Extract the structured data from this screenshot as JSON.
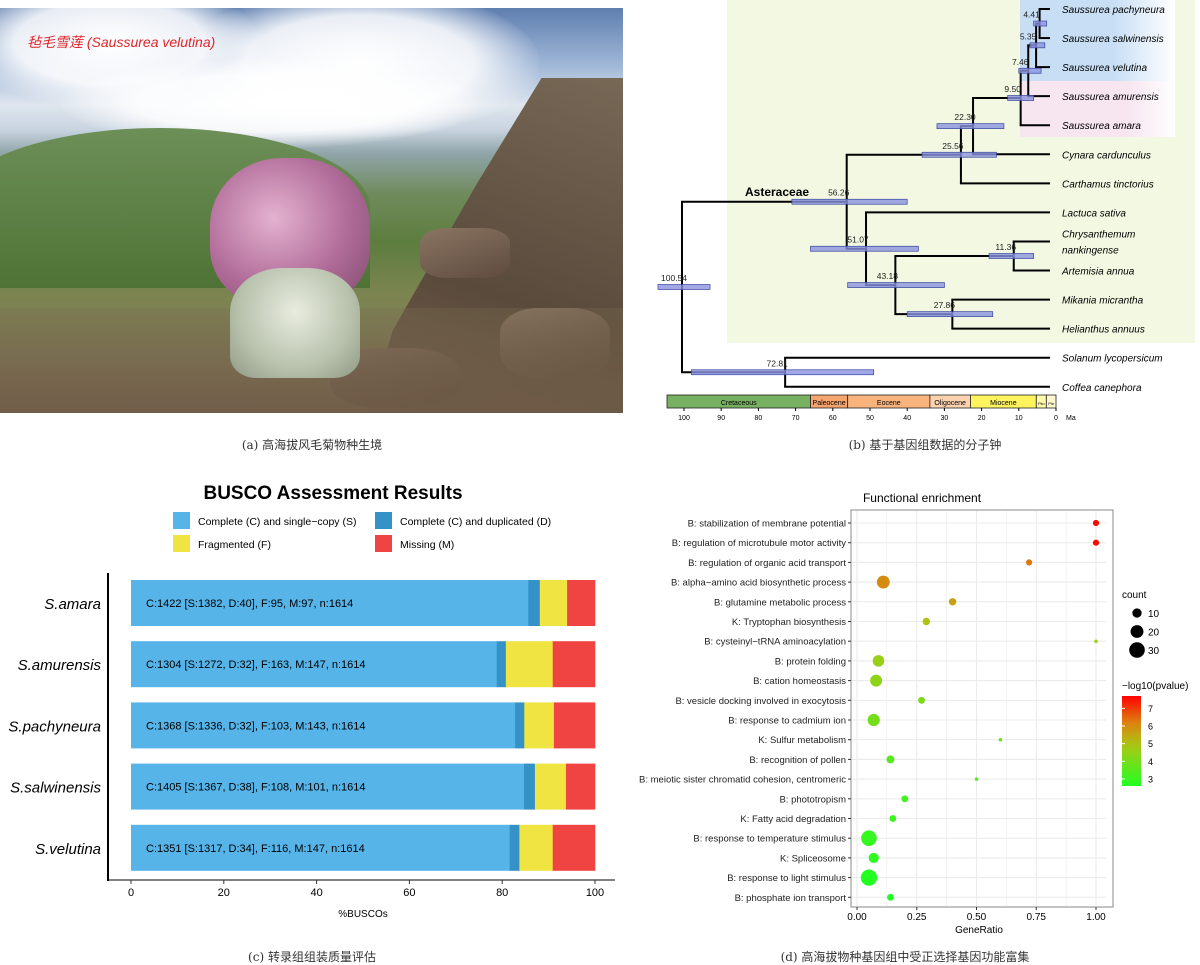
{
  "panel_a": {
    "photo_title": "毡毛雪莲 (Saussurea velutina)",
    "caption": "(a) 高海拔风毛菊物种生境"
  },
  "panel_b": {
    "caption": "(b) 基于基因组数据的分子钟",
    "clade_label": "Asteraceae",
    "axis_unit": "Ma",
    "axis_ticks": [
      100,
      90,
      80,
      70,
      60,
      50,
      40,
      30,
      20,
      10,
      0
    ],
    "highlight_colors": {
      "asteraceae": "#f3f8e2",
      "blue_group": "#c8def5",
      "pink_group": "#f7e6f0"
    },
    "epochs": [
      {
        "name": "Cretaceous",
        "from": 105,
        "to": 66,
        "color": "#78b062"
      },
      {
        "name": "Paleocene",
        "from": 66,
        "to": 56,
        "color": "#f7a56e"
      },
      {
        "name": "Eocene",
        "from": 56,
        "to": 33.9,
        "color": "#f9b47e"
      },
      {
        "name": "Oligocene",
        "from": 33.9,
        "to": 23,
        "color": "#fbd2ae"
      },
      {
        "name": "Miocene",
        "from": 23,
        "to": 5.3,
        "color": "#fff35e"
      },
      {
        "name": "Plio",
        "from": 5.3,
        "to": 2.6,
        "color": "#fff9a8"
      },
      {
        "name": "Ple",
        "from": 2.6,
        "to": 0,
        "color": "#fff6cc"
      }
    ],
    "tree": {
      "age": 100.54,
      "ci": [
        107,
        93
      ],
      "children": [
        {
          "age": 56.26,
          "ci": [
            71,
            40
          ],
          "children": [
            {
              "age": 25.56,
              "ci": [
                36,
                16
              ],
              "children": [
                {
                  "age": 22.3,
                  "ci": [
                    32,
                    14
                  ],
                  "children": [
                    {
                      "age": 9.5,
                      "ci": [
                        13,
                        6
                      ],
                      "children": [
                        {
                          "age": 7.46,
                          "ci": [
                            10,
                            4
                          ],
                          "children": [
                            {
                              "age": 5.35,
                              "ci": [
                                7,
                                3
                              ],
                              "children": [
                                {
                                  "age": 4.41,
                                  "ci": [
                                    6,
                                    2.5
                                  ],
                                  "children": [
                                    {
                                      "name": "Saussurea pachyneura"
                                    },
                                    {
                                      "name": "Saussurea salwinensis"
                                    }
                                  ]
                                },
                                {
                                  "name": "Saussurea velutina"
                                }
                              ]
                            },
                            {
                              "name": "Saussurea amurensis"
                            }
                          ]
                        },
                        {
                          "name": "Saussurea amara"
                        }
                      ]
                    },
                    {
                      "name": "Cynara cardunculus"
                    }
                  ]
                },
                {
                  "name": "Carthamus tinctorius"
                }
              ]
            },
            {
              "age": 51.07,
              "ci": [
                66,
                37
              ],
              "children": [
                {
                  "name": "Lactuca sativa"
                },
                {
                  "age": 43.18,
                  "ci": [
                    56,
                    30
                  ],
                  "children": [
                    {
                      "age": 11.36,
                      "ci": [
                        18,
                        6
                      ],
                      "children": [
                        {
                          "name": "Chrysanthemum nankingense"
                        },
                        {
                          "name": "Artemisia annua"
                        }
                      ]
                    },
                    {
                      "age": 27.86,
                      "ci": [
                        40,
                        17
                      ],
                      "children": [
                        {
                          "name": "Mikania micrantha"
                        },
                        {
                          "name": "Helianthus annuus"
                        }
                      ]
                    }
                  ]
                }
              ]
            }
          ]
        },
        {
          "age": 72.81,
          "ci": [
            98,
            49
          ],
          "children": [
            {
              "name": "Solanum lycopersicum"
            },
            {
              "name": "Coffea canephora"
            }
          ]
        }
      ]
    }
  },
  "chart_data": [
    {
      "type": "bar",
      "title": "BUSCO Assessment Results",
      "xlabel": "%BUSCOs",
      "xlim": [
        0,
        100
      ],
      "x_ticks": [
        0,
        20,
        40,
        60,
        80,
        100
      ],
      "grid": false,
      "legend_position": "top",
      "legend": [
        {
          "key": "S",
          "label": "Complete (C) and single−copy (S)",
          "color": "#56b4e9"
        },
        {
          "key": "D",
          "label": "Complete (C) and duplicated (D)",
          "color": "#3492c7"
        },
        {
          "key": "F",
          "label": "Fragmented (F)",
          "color": "#f0e442"
        },
        {
          "key": "M",
          "label": "Missing (M)",
          "color": "#f04442"
        }
      ],
      "categories": [
        "S.amara",
        "S.amurensis",
        "S.pachyneura",
        "S.salwinensis",
        "S.velutina"
      ],
      "rows": [
        {
          "C": 1422,
          "S": 1382,
          "D": 40,
          "F": 95,
          "M": 97,
          "n": 1614,
          "label": "C:1422 [S:1382, D:40], F:95, M:97, n:1614"
        },
        {
          "C": 1304,
          "S": 1272,
          "D": 32,
          "F": 163,
          "M": 147,
          "n": 1614,
          "label": "C:1304 [S:1272, D:32], F:163, M:147, n:1614"
        },
        {
          "C": 1368,
          "S": 1336,
          "D": 32,
          "F": 103,
          "M": 143,
          "n": 1614,
          "label": "C:1368 [S:1336, D:32], F:103, M:143, n:1614"
        },
        {
          "C": 1405,
          "S": 1367,
          "D": 38,
          "F": 108,
          "M": 101,
          "n": 1614,
          "label": "C:1405 [S:1367, D:38], F:108, M:101, n:1614"
        },
        {
          "C": 1351,
          "S": 1317,
          "D": 34,
          "F": 116,
          "M": 147,
          "n": 1614,
          "label": "C:1351 [S:1317, D:34], F:116, M:147, n:1614"
        }
      ],
      "caption": "(c) 转录组组装质量评估"
    },
    {
      "type": "scatter",
      "title": "Functional enrichment",
      "xlabel": "GeneRatio",
      "xlim": [
        0,
        1.0
      ],
      "x_ticks": [
        "0.00",
        "0.25",
        "0.50",
        "0.75",
        "1.00"
      ],
      "grid": true,
      "size_legend": {
        "title": "count",
        "values": [
          10,
          20,
          30
        ]
      },
      "color_legend": {
        "title": "−log10(pvalue)",
        "ticks": [
          3,
          4,
          5,
          6,
          7
        ],
        "low_color": "#22ff22",
        "high_color": "#ff0000",
        "range": [
          2.6,
          7.7
        ]
      },
      "points": [
        {
          "term": "B: stabilization of membrane potential",
          "gene_ratio": 1.0,
          "count": 4,
          "neglog10p": 7.6
        },
        {
          "term": "B: regulation of microtubule motor activity",
          "gene_ratio": 1.0,
          "count": 4,
          "neglog10p": 7.6
        },
        {
          "term": "B: regulation of organic acid transport",
          "gene_ratio": 0.72,
          "count": 4,
          "neglog10p": 6.3
        },
        {
          "term": "B: alpha−amino acid biosynthetic process",
          "gene_ratio": 0.11,
          "count": 20,
          "neglog10p": 6.0
        },
        {
          "term": "B: glutamine metabolic process",
          "gene_ratio": 0.4,
          "count": 6,
          "neglog10p": 5.6
        },
        {
          "term": "K: Tryptophan biosynthesis",
          "gene_ratio": 0.29,
          "count": 6,
          "neglog10p": 5.0
        },
        {
          "term": "B: cysteinyl−tRNA aminoacylation",
          "gene_ratio": 1.0,
          "count": 1,
          "neglog10p": 4.7
        },
        {
          "term": "B: protein folding",
          "gene_ratio": 0.09,
          "count": 16,
          "neglog10p": 4.6
        },
        {
          "term": "B: cation homeostasis",
          "gene_ratio": 0.08,
          "count": 17,
          "neglog10p": 4.4
        },
        {
          "term": "B: vesicle docking involved in exocytosis",
          "gene_ratio": 0.27,
          "count": 5,
          "neglog10p": 4.1
        },
        {
          "term": "B: response to cadmium ion",
          "gene_ratio": 0.07,
          "count": 18,
          "neglog10p": 4.0
        },
        {
          "term": "K: Sulfur metabolism",
          "gene_ratio": 0.6,
          "count": 1,
          "neglog10p": 3.8
        },
        {
          "term": "B: recognition of pollen",
          "gene_ratio": 0.14,
          "count": 7,
          "neglog10p": 3.5
        },
        {
          "term": "B: meiotic sister chromatid cohesion, centromeric",
          "gene_ratio": 0.5,
          "count": 1,
          "neglog10p": 3.4
        },
        {
          "term": "B: phototropism",
          "gene_ratio": 0.2,
          "count": 5,
          "neglog10p": 3.1
        },
        {
          "term": "K: Fatty acid degradation",
          "gene_ratio": 0.15,
          "count": 5,
          "neglog10p": 3.0
        },
        {
          "term": "B: response to temperature stimulus",
          "gene_ratio": 0.05,
          "count": 30,
          "neglog10p": 2.9
        },
        {
          "term": "K: Spliceosome",
          "gene_ratio": 0.07,
          "count": 12,
          "neglog10p": 2.8
        },
        {
          "term": "B: response to light stimulus",
          "gene_ratio": 0.05,
          "count": 33,
          "neglog10p": 2.6
        },
        {
          "term": "B: phosphate ion transport",
          "gene_ratio": 0.14,
          "count": 5,
          "neglog10p": 2.6
        }
      ],
      "caption": "(d) 高海拔物种基因组中受正选择基因功能富集"
    }
  ]
}
